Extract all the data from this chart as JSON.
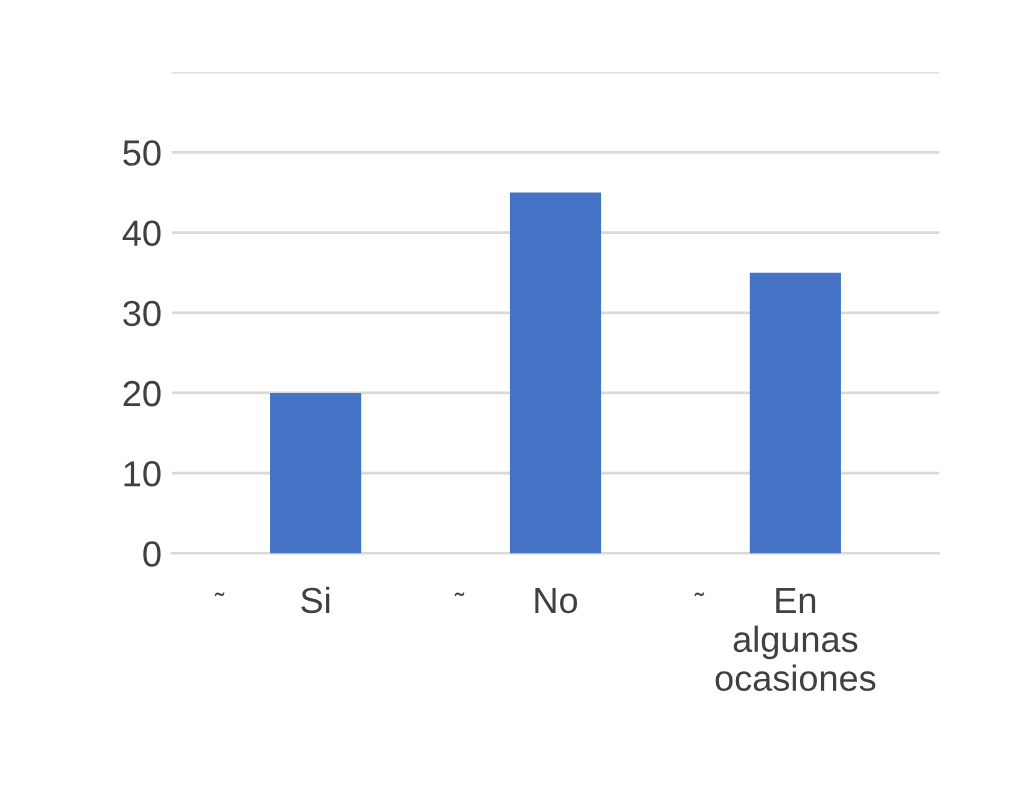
{
  "chart_data": {
    "type": "bar",
    "categories": [
      "Si",
      "No",
      "En\nalgunas\nocasiones"
    ],
    "values": [
      20,
      45,
      35
    ],
    "color": "#4472c4",
    "ylim": [
      0,
      60
    ],
    "yticks": [
      0,
      10,
      20,
      30,
      40,
      50,
      {
        "value": 60,
        "label": null
      }
    ],
    "grid": "y",
    "annotations": [
      "˜",
      "˜",
      "˜"
    ]
  }
}
